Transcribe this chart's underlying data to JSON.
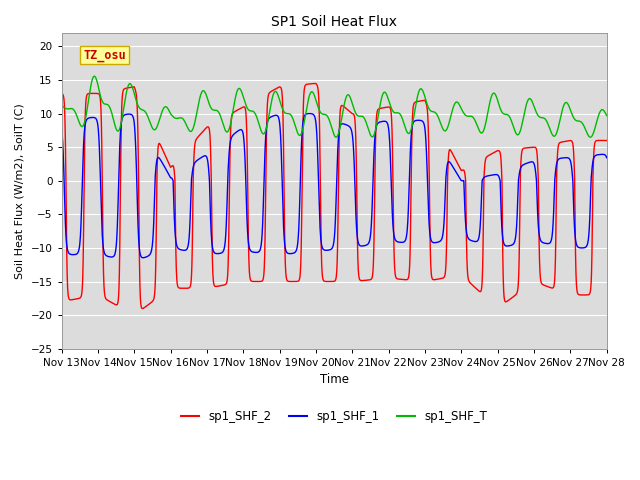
{
  "title": "SP1 Soil Heat Flux",
  "xlabel": "Time",
  "ylabel": "Soil Heat Flux (W/m2), SoilT (C)",
  "ylim": [
    -25,
    22
  ],
  "yticks": [
    -25,
    -20,
    -15,
    -10,
    -5,
    0,
    5,
    10,
    15,
    20
  ],
  "xtick_labels": [
    "Nov 13",
    "Nov 14",
    "Nov 15",
    "Nov 16",
    "Nov 17",
    "Nov 18",
    "Nov 19",
    "Nov 20",
    "Nov 21",
    "Nov 22",
    "Nov 23",
    "Nov 24",
    "Nov 25",
    "Nov 26",
    "Nov 27",
    "Nov 28"
  ],
  "color_shf2": "#FF0000",
  "color_shf1": "#0000FF",
  "color_shft": "#00BB00",
  "bg_color": "#DCDCDC",
  "legend_label_shf2": "sp1_SHF_2",
  "legend_label_shf1": "sp1_SHF_1",
  "legend_label_shft": "sp1_SHF_T",
  "annotation_text": "TZ_osu",
  "annotation_color": "#CC0000",
  "annotation_bg": "#FFFF99",
  "annotation_border": "#CCAA00"
}
